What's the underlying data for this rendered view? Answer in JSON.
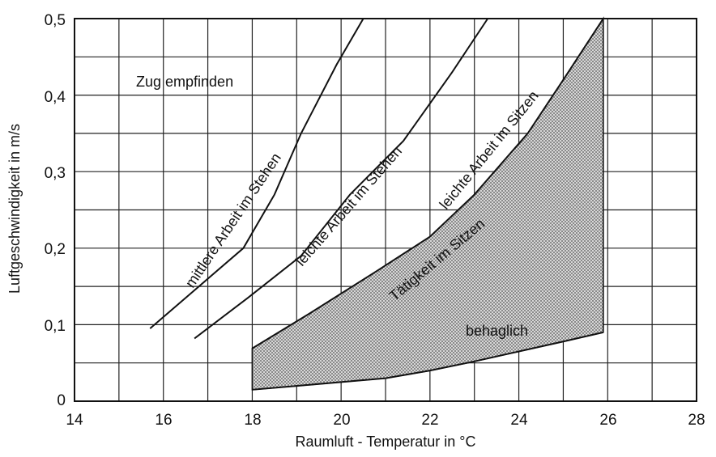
{
  "chart_data": {
    "type": "line",
    "title": "",
    "xlabel": "Raumluft - Temperatur in °C",
    "ylabel": "Luftgeschwindigkeit in m/s",
    "xlim": [
      14,
      28
    ],
    "ylim": [
      0,
      0.5
    ],
    "x_ticks": [
      14,
      16,
      18,
      20,
      22,
      24,
      26,
      28
    ],
    "x_tick_labels": [
      "14",
      "16",
      "18",
      "20",
      "22",
      "24",
      "26",
      "28"
    ],
    "y_ticks": [
      0,
      0.1,
      0.2,
      0.3,
      0.4,
      0.5
    ],
    "y_tick_labels": [
      "0",
      "0,1",
      "0,2",
      "0,3",
      "0,4",
      "0,5"
    ],
    "grid": true,
    "series": [
      {
        "name": "mittlere Arbeit im Stehen",
        "x": [
          15.7,
          16.8,
          17.8,
          18.5,
          19.1,
          19.9,
          20.5
        ],
        "y": [
          0.095,
          0.15,
          0.2,
          0.27,
          0.35,
          0.44,
          0.5
        ]
      },
      {
        "name": "leichte Arbeit im Stehen",
        "x": [
          16.7,
          17.9,
          19.1,
          20.2,
          21.4,
          22.5,
          23.3
        ],
        "y": [
          0.082,
          0.135,
          0.19,
          0.27,
          0.34,
          0.43,
          0.5
        ]
      },
      {
        "name": "leichte Arbeit im Sitzen",
        "x": [
          18.0,
          19.3,
          20.8,
          22.0,
          23.0,
          24.2,
          25.0,
          25.9
        ],
        "y": [
          0.069,
          0.115,
          0.17,
          0.215,
          0.27,
          0.35,
          0.42,
          0.5
        ]
      },
      {
        "name": "behaglich",
        "x": [
          18.0,
          19.0,
          20.0,
          21.0,
          22.0,
          23.0,
          24.0,
          25.0,
          25.9
        ],
        "y": [
          0.015,
          0.02,
          0.025,
          0.03,
          0.04,
          0.052,
          0.065,
          0.078,
          0.09
        ]
      }
    ],
    "shaded_region": {
      "label": "Tätigkeit im Sitzen",
      "x_min": 18.0,
      "x_max": 25.9
    },
    "annotations": [
      "Zug empfinden",
      "mittlere Arbeit im Stehen",
      "leichte Arbeit im Stehen",
      "leichte Arbeit im Sitzen",
      "Tätigkeit im Sitzen",
      "behaglich"
    ]
  }
}
